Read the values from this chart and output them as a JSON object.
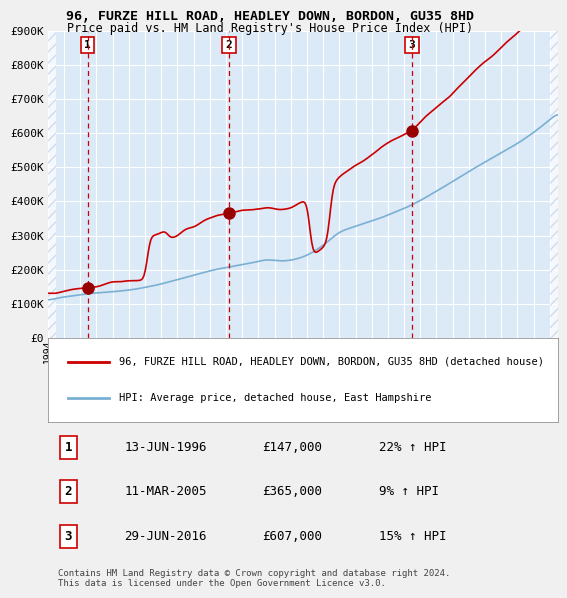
{
  "title": "96, FURZE HILL ROAD, HEADLEY DOWN, BORDON, GU35 8HD",
  "subtitle": "Price paid vs. HM Land Registry's House Price Index (HPI)",
  "bg_color": "#dce9f7",
  "plot_bg_color": "#dce9f7",
  "hatch_color": "#c0d0e8",
  "grid_color": "#ffffff",
  "red_line_color": "#cc0000",
  "blue_line_color": "#7ab0d4",
  "dashed_line_color": "#cc0000",
  "sale_marker_color": "#990000",
  "ylim": [
    0,
    900000
  ],
  "ytick_labels": [
    "£0",
    "£100K",
    "£200K",
    "£300K",
    "£400K",
    "£500K",
    "£600K",
    "£700K",
    "£800K",
    "£900K"
  ],
  "ytick_values": [
    0,
    100000,
    200000,
    300000,
    400000,
    500000,
    600000,
    700000,
    800000,
    900000
  ],
  "sale_dates": [
    1996.45,
    2005.19,
    2016.49
  ],
  "sale_prices": [
    147000,
    365000,
    607000
  ],
  "sale_labels": [
    "1",
    "2",
    "3"
  ],
  "sale_label_dates_str": [
    "13-JUN-1996",
    "11-MAR-2005",
    "29-JUN-2016"
  ],
  "sale_prices_str": [
    "£147,000",
    "£365,000",
    "£607,000"
  ],
  "sale_hpi_str": [
    "22% ↑ HPI",
    "9% ↑ HPI",
    "15% ↑ HPI"
  ],
  "legend_red_label": "96, FURZE HILL ROAD, HEADLEY DOWN, BORDON, GU35 8HD (detached house)",
  "legend_blue_label": "HPI: Average price, detached house, East Hampshire",
  "footer_text": "Contains HM Land Registry data © Crown copyright and database right 2024.\nThis data is licensed under the Open Government Licence v3.0.",
  "xstart": 1994.0,
  "xend": 2025.5
}
